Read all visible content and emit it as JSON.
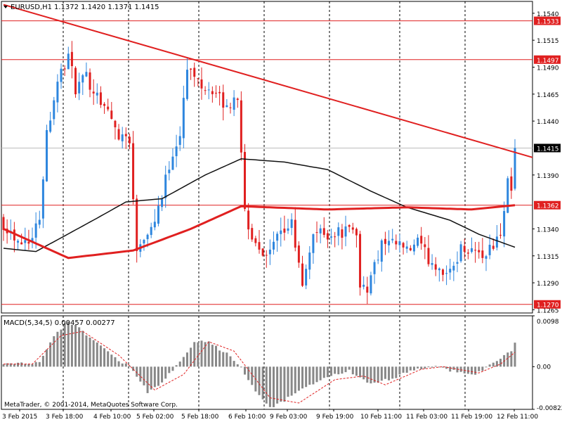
{
  "window": {
    "title": "EURUSD,H1",
    "ohlc": "1.1372 1.1420 1.1371 1.1415",
    "copyright": "MetaTrader, © 2001-2014, MetaQuotes Software Corp."
  },
  "colors": {
    "bull": "#2e86de",
    "bear": "#e02020",
    "ma_slow": "#e02020",
    "ma_fast": "#111111",
    "level": "#e02020",
    "trend": "#e02020",
    "macd_hist": "#888888",
    "macd_signal": "#e02020"
  },
  "chart_data": [
    {
      "type": "candlestick",
      "symbol": "EURUSD",
      "timeframe": "H1",
      "ylim": [
        1.1262,
        1.1551
      ],
      "y_ticks": [
        "1.1540",
        "1.1515",
        "1.1490",
        "1.1465",
        "1.1440",
        "1.1390",
        "1.1340",
        "1.1315",
        "1.1290",
        "1.1265"
      ],
      "x_labels": [
        "3 Feb 2015",
        "3 Feb 18:00",
        "4 Feb 10:00",
        "5 Feb 02:00",
        "5 Feb 18:00",
        "6 Feb 10:00",
        "9 Feb 03:00",
        "9 Feb 19:00",
        "10 Feb 11:00",
        "11 Feb 03:00",
        "11 Feb 19:00",
        "12 Feb 11:00"
      ],
      "bar_count": 142,
      "levels": [
        {
          "value": 1.1533,
          "label": "1.1533"
        },
        {
          "value": 1.1497,
          "label": "1.1497"
        },
        {
          "value": 1.1362,
          "label": "1.1362"
        },
        {
          "value": 1.127,
          "label": "1.1270"
        }
      ],
      "current_price": {
        "value": 1.1415,
        "label": "1.1415"
      },
      "trendline": [
        {
          "bar": 0,
          "price": 1.1548
        },
        {
          "bar": 142,
          "price": 1.1411
        }
      ],
      "anchors": [
        [
          0,
          1.1345
        ],
        [
          4,
          1.133
        ],
        [
          8,
          1.1332
        ],
        [
          10,
          1.1352
        ],
        [
          12,
          1.143
        ],
        [
          15,
          1.1478
        ],
        [
          18,
          1.15
        ],
        [
          20,
          1.147
        ],
        [
          23,
          1.148
        ],
        [
          28,
          1.1455
        ],
        [
          32,
          1.1428
        ],
        [
          35,
          1.1425
        ],
        [
          36,
          1.1365
        ],
        [
          37,
          1.1322
        ],
        [
          38,
          1.133
        ],
        [
          41,
          1.1342
        ],
        [
          44,
          1.137
        ],
        [
          46,
          1.14
        ],
        [
          49,
          1.143
        ],
        [
          51,
          1.1488
        ],
        [
          54,
          1.1478
        ],
        [
          58,
          1.1468
        ],
        [
          62,
          1.1452
        ],
        [
          65,
          1.1465
        ],
        [
          66,
          1.1405
        ],
        [
          67,
          1.136
        ],
        [
          68,
          1.1338
        ],
        [
          71,
          1.1325
        ],
        [
          73,
          1.1312
        ],
        [
          76,
          1.133
        ],
        [
          80,
          1.1345
        ],
        [
          83,
          1.1285
        ],
        [
          84,
          1.13
        ],
        [
          86,
          1.1338
        ],
        [
          90,
          1.1335
        ],
        [
          95,
          1.1338
        ],
        [
          98,
          1.1335
        ],
        [
          99,
          1.129
        ],
        [
          101,
          1.1285
        ],
        [
          103,
          1.1305
        ],
        [
          105,
          1.1325
        ],
        [
          110,
          1.1325
        ],
        [
          112,
          1.1318
        ],
        [
          115,
          1.1328
        ],
        [
          118,
          1.1312
        ],
        [
          122,
          1.1302
        ],
        [
          124,
          1.1298
        ],
        [
          127,
          1.1322
        ],
        [
          130,
          1.1322
        ],
        [
          133,
          1.1315
        ],
        [
          136,
          1.1325
        ],
        [
          138,
          1.1333
        ],
        [
          140,
          1.1388
        ],
        [
          141,
          1.1372
        ],
        [
          142,
          1.1415
        ]
      ],
      "ma_slow": [
        [
          0,
          1.134
        ],
        [
          18,
          1.1313
        ],
        [
          36,
          1.132
        ],
        [
          52,
          1.134
        ],
        [
          66,
          1.1361
        ],
        [
          90,
          1.1358
        ],
        [
          112,
          1.136
        ],
        [
          130,
          1.1358
        ],
        [
          142,
          1.1362
        ]
      ],
      "ma_fast": [
        [
          0,
          1.1322
        ],
        [
          9,
          1.1319
        ],
        [
          26,
          1.135
        ],
        [
          34,
          1.1365
        ],
        [
          44,
          1.1368
        ],
        [
          56,
          1.139
        ],
        [
          66,
          1.1405
        ],
        [
          78,
          1.1402
        ],
        [
          90,
          1.1395
        ],
        [
          102,
          1.1375
        ],
        [
          112,
          1.136
        ],
        [
          124,
          1.1348
        ],
        [
          132,
          1.1335
        ],
        [
          142,
          1.1323
        ]
      ]
    },
    {
      "type": "bar",
      "title": "MACD(5,34,5) 0.00457 0.00277",
      "ylim": [
        -0.00822,
        0.0098
      ],
      "y_ticks": [
        "0.0098",
        "0.00",
        "-0.00822"
      ],
      "anchors": [
        [
          0,
          0.0007
        ],
        [
          6,
          0.0005
        ],
        [
          10,
          0.001
        ],
        [
          14,
          0.006
        ],
        [
          18,
          0.0088
        ],
        [
          24,
          0.0058
        ],
        [
          30,
          0.0022
        ],
        [
          35,
          0.0
        ],
        [
          40,
          -0.0048
        ],
        [
          44,
          -0.003
        ],
        [
          48,
          0.0
        ],
        [
          53,
          0.0045
        ],
        [
          56,
          0.005
        ],
        [
          62,
          0.0025
        ],
        [
          66,
          -0.0002
        ],
        [
          70,
          -0.005
        ],
        [
          74,
          -0.008
        ],
        [
          78,
          -0.0065
        ],
        [
          84,
          -0.004
        ],
        [
          90,
          -0.002
        ],
        [
          96,
          -0.0008
        ],
        [
          102,
          -0.0035
        ],
        [
          108,
          -0.0022
        ],
        [
          114,
          -0.0005
        ],
        [
          120,
          0.0
        ],
        [
          126,
          -0.001
        ],
        [
          131,
          -0.0015
        ],
        [
          134,
          0.0
        ],
        [
          138,
          0.0015
        ],
        [
          141,
          0.003
        ],
        [
          142,
          0.00457
        ]
      ],
      "signal_anchors": [
        [
          0,
          0.0005
        ],
        [
          8,
          0.0005
        ],
        [
          16,
          0.006
        ],
        [
          22,
          0.0068
        ],
        [
          32,
          0.0022
        ],
        [
          42,
          -0.0045
        ],
        [
          50,
          -0.0015
        ],
        [
          57,
          0.0048
        ],
        [
          64,
          0.003
        ],
        [
          74,
          -0.006
        ],
        [
          82,
          -0.007
        ],
        [
          92,
          -0.0025
        ],
        [
          100,
          -0.0018
        ],
        [
          106,
          -0.0035
        ],
        [
          116,
          -0.0005
        ],
        [
          122,
          0.0
        ],
        [
          132,
          -0.0012
        ],
        [
          138,
          0.0005
        ],
        [
          142,
          0.00277
        ]
      ]
    }
  ]
}
